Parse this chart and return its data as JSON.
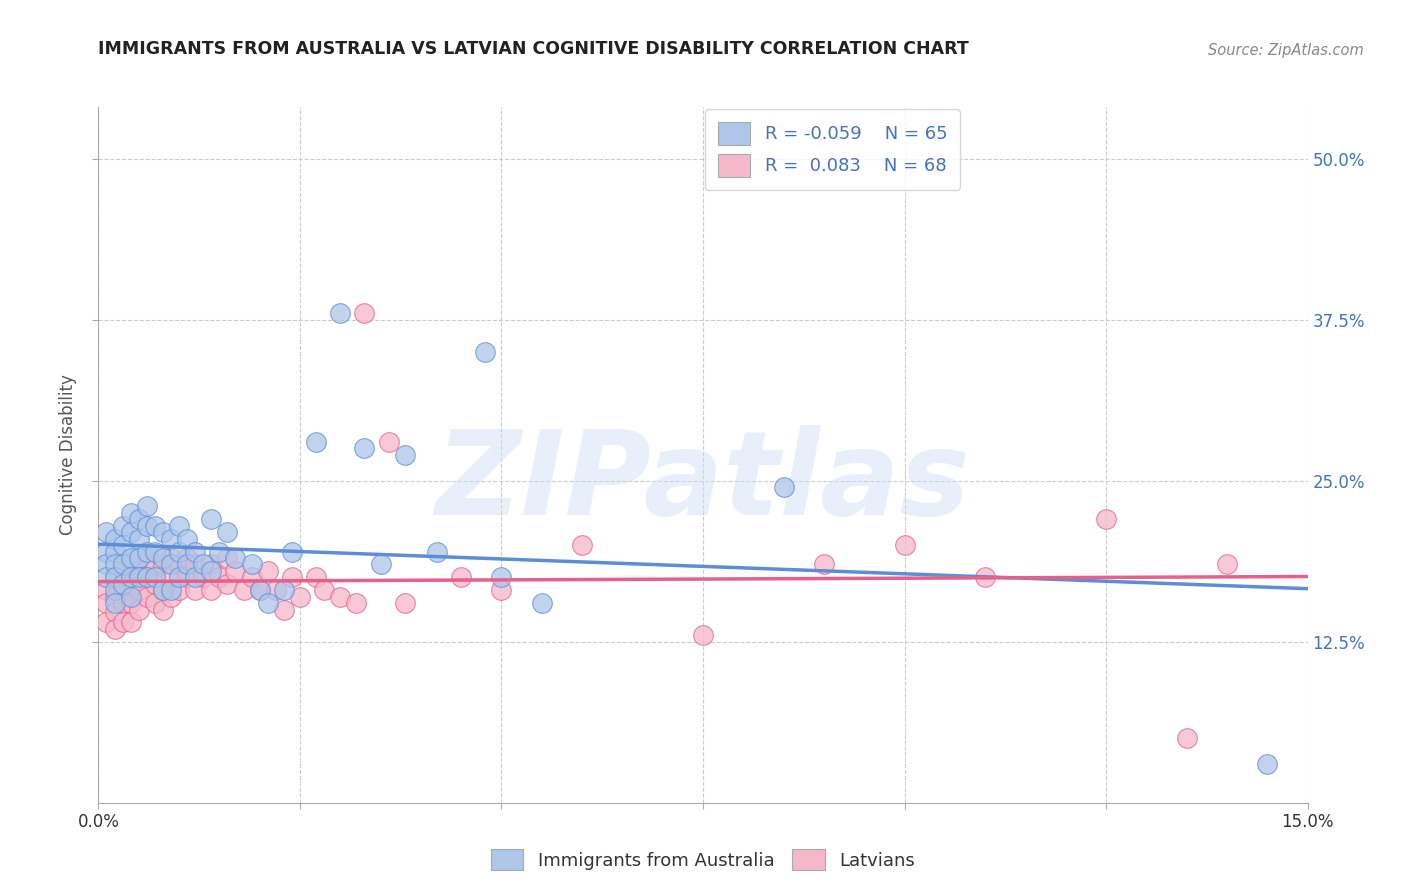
{
  "title": "IMMIGRANTS FROM AUSTRALIA VS LATVIAN COGNITIVE DISABILITY CORRELATION CHART",
  "source": "Source: ZipAtlas.com",
  "ylabel": "Cognitive Disability",
  "xlim": [
    0.0,
    0.15
  ],
  "ylim": [
    0.0,
    0.54
  ],
  "yticks": [
    0.125,
    0.25,
    0.375,
    0.5
  ],
  "ytick_labels": [
    "12.5%",
    "25.0%",
    "37.5%",
    "50.0%"
  ],
  "xticks": [
    0.0,
    0.025,
    0.05,
    0.075,
    0.1,
    0.125,
    0.15
  ],
  "xtick_labels": [
    "0.0%",
    "",
    "",
    "",
    "",
    "",
    "15.0%"
  ],
  "legend_r_aus": "-0.059",
  "legend_n_aus": "65",
  "legend_r_lat": " 0.083",
  "legend_n_lat": "68",
  "color_aus": "#aec6e8",
  "color_lat": "#f5b8ca",
  "color_line_aus": "#5b8dd9",
  "color_line_lat": "#e8608a",
  "watermark": "ZIPatlas",
  "background_color": "#ffffff",
  "grid_color": "#cccccc",
  "title_color": "#222222",
  "axis_label_color": "#555555",
  "right_tick_color": "#4472c4",
  "aus_scatter": [
    [
      0.001,
      0.195
    ],
    [
      0.001,
      0.21
    ],
    [
      0.001,
      0.185
    ],
    [
      0.001,
      0.175
    ],
    [
      0.002,
      0.205
    ],
    [
      0.002,
      0.195
    ],
    [
      0.002,
      0.185
    ],
    [
      0.002,
      0.175
    ],
    [
      0.002,
      0.165
    ],
    [
      0.002,
      0.155
    ],
    [
      0.003,
      0.215
    ],
    [
      0.003,
      0.2
    ],
    [
      0.003,
      0.185
    ],
    [
      0.003,
      0.17
    ],
    [
      0.004,
      0.225
    ],
    [
      0.004,
      0.21
    ],
    [
      0.004,
      0.19
    ],
    [
      0.004,
      0.175
    ],
    [
      0.004,
      0.16
    ],
    [
      0.005,
      0.22
    ],
    [
      0.005,
      0.205
    ],
    [
      0.005,
      0.19
    ],
    [
      0.005,
      0.175
    ],
    [
      0.006,
      0.23
    ],
    [
      0.006,
      0.215
    ],
    [
      0.006,
      0.195
    ],
    [
      0.006,
      0.175
    ],
    [
      0.007,
      0.215
    ],
    [
      0.007,
      0.195
    ],
    [
      0.007,
      0.175
    ],
    [
      0.008,
      0.21
    ],
    [
      0.008,
      0.19
    ],
    [
      0.008,
      0.165
    ],
    [
      0.009,
      0.205
    ],
    [
      0.009,
      0.185
    ],
    [
      0.009,
      0.165
    ],
    [
      0.01,
      0.215
    ],
    [
      0.01,
      0.195
    ],
    [
      0.01,
      0.175
    ],
    [
      0.011,
      0.205
    ],
    [
      0.011,
      0.185
    ],
    [
      0.012,
      0.195
    ],
    [
      0.012,
      0.175
    ],
    [
      0.013,
      0.185
    ],
    [
      0.014,
      0.22
    ],
    [
      0.014,
      0.18
    ],
    [
      0.015,
      0.195
    ],
    [
      0.016,
      0.21
    ],
    [
      0.017,
      0.19
    ],
    [
      0.019,
      0.185
    ],
    [
      0.02,
      0.165
    ],
    [
      0.021,
      0.155
    ],
    [
      0.023,
      0.165
    ],
    [
      0.024,
      0.195
    ],
    [
      0.027,
      0.28
    ],
    [
      0.03,
      0.38
    ],
    [
      0.033,
      0.275
    ],
    [
      0.035,
      0.185
    ],
    [
      0.038,
      0.27
    ],
    [
      0.042,
      0.195
    ],
    [
      0.048,
      0.35
    ],
    [
      0.05,
      0.175
    ],
    [
      0.055,
      0.155
    ],
    [
      0.085,
      0.245
    ],
    [
      0.145,
      0.03
    ]
  ],
  "lat_scatter": [
    [
      0.001,
      0.165
    ],
    [
      0.001,
      0.155
    ],
    [
      0.001,
      0.14
    ],
    [
      0.002,
      0.175
    ],
    [
      0.002,
      0.16
    ],
    [
      0.002,
      0.148
    ],
    [
      0.002,
      0.135
    ],
    [
      0.003,
      0.18
    ],
    [
      0.003,
      0.165
    ],
    [
      0.003,
      0.155
    ],
    [
      0.003,
      0.14
    ],
    [
      0.004,
      0.185
    ],
    [
      0.004,
      0.17
    ],
    [
      0.004,
      0.155
    ],
    [
      0.004,
      0.14
    ],
    [
      0.005,
      0.18
    ],
    [
      0.005,
      0.165
    ],
    [
      0.005,
      0.15
    ],
    [
      0.006,
      0.19
    ],
    [
      0.006,
      0.175
    ],
    [
      0.006,
      0.16
    ],
    [
      0.007,
      0.185
    ],
    [
      0.007,
      0.17
    ],
    [
      0.007,
      0.155
    ],
    [
      0.008,
      0.185
    ],
    [
      0.008,
      0.165
    ],
    [
      0.008,
      0.15
    ],
    [
      0.009,
      0.19
    ],
    [
      0.009,
      0.175
    ],
    [
      0.009,
      0.16
    ],
    [
      0.01,
      0.185
    ],
    [
      0.01,
      0.165
    ],
    [
      0.011,
      0.19
    ],
    [
      0.011,
      0.175
    ],
    [
      0.012,
      0.185
    ],
    [
      0.012,
      0.165
    ],
    [
      0.013,
      0.175
    ],
    [
      0.014,
      0.185
    ],
    [
      0.014,
      0.165
    ],
    [
      0.015,
      0.175
    ],
    [
      0.016,
      0.19
    ],
    [
      0.016,
      0.17
    ],
    [
      0.017,
      0.18
    ],
    [
      0.018,
      0.165
    ],
    [
      0.019,
      0.175
    ],
    [
      0.02,
      0.165
    ],
    [
      0.021,
      0.18
    ],
    [
      0.022,
      0.165
    ],
    [
      0.023,
      0.15
    ],
    [
      0.024,
      0.175
    ],
    [
      0.025,
      0.16
    ],
    [
      0.027,
      0.175
    ],
    [
      0.028,
      0.165
    ],
    [
      0.03,
      0.16
    ],
    [
      0.032,
      0.155
    ],
    [
      0.033,
      0.38
    ],
    [
      0.036,
      0.28
    ],
    [
      0.038,
      0.155
    ],
    [
      0.045,
      0.175
    ],
    [
      0.05,
      0.165
    ],
    [
      0.06,
      0.2
    ],
    [
      0.075,
      0.13
    ],
    [
      0.09,
      0.185
    ],
    [
      0.1,
      0.2
    ],
    [
      0.11,
      0.175
    ],
    [
      0.125,
      0.22
    ],
    [
      0.135,
      0.05
    ],
    [
      0.14,
      0.185
    ]
  ]
}
